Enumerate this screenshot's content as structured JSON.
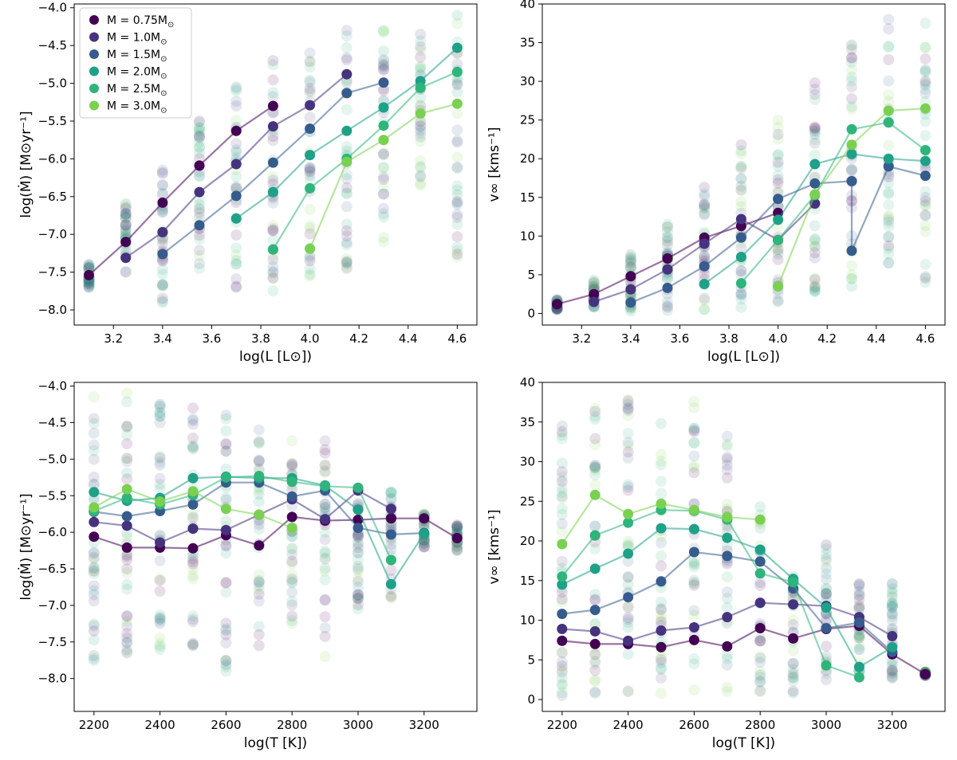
{
  "colors": {
    "M075": "#440154",
    "M10": "#46337e",
    "M15": "#365c8d",
    "M20": "#1fa187",
    "M25": "#2fb47c",
    "M30": "#7ad151"
  },
  "legend": [
    {
      "key": "M075",
      "label_pre": "M = 0.75M",
      "label_sub": "⊙"
    },
    {
      "key": "M10",
      "label_pre": "M = 1.0M",
      "label_sub": "⊙"
    },
    {
      "key": "M15",
      "label_pre": "M = 1.5M",
      "label_sub": "⊙"
    },
    {
      "key": "M20",
      "label_pre": "M = 2.0M",
      "label_sub": "⊙"
    },
    {
      "key": "M25",
      "label_pre": "M = 2.5M",
      "label_sub": "⊙"
    },
    {
      "key": "M30",
      "label_pre": "M = 3.0M",
      "label_sub": "⊙"
    }
  ],
  "chart_data": [
    {
      "type": "line",
      "id": "mdot-vs-L",
      "xlabel": "log(L [L⊙])",
      "ylabel": "log(Ṁ) [M⊙yr⁻¹]",
      "xlim": [
        3.04,
        4.68
      ],
      "ylim": [
        -8.2,
        -3.95
      ],
      "xticks": [
        3.2,
        3.4,
        3.6,
        3.8,
        4.0,
        4.2,
        4.4,
        4.6
      ],
      "xtick_labels": [
        "3.2",
        "3.4",
        "3.6",
        "3.8",
        "4.0",
        "4.2",
        "4.4",
        "4.6"
      ],
      "yticks": [
        -8.0,
        -7.5,
        -7.0,
        -6.5,
        -6.0,
        -5.5,
        -5.0,
        -4.5,
        -4.0
      ],
      "ytick_labels": [
        "−8.0",
        "−7.5",
        "−7.0",
        "−6.5",
        "−6.0",
        "−5.5",
        "−5.0",
        "−4.5",
        "−4.0"
      ],
      "scatter_band": {
        "step_keys": [
          3.1,
          3.25,
          3.4,
          3.55,
          3.7,
          3.85,
          4.0,
          4.15,
          4.3,
          4.45,
          4.6
        ]
      },
      "series": [
        {
          "name": "M075",
          "x": [
            3.1,
            3.25,
            3.4,
            3.55,
            3.7,
            3.85
          ],
          "y": [
            -7.54,
            -7.1,
            -6.58,
            -6.09,
            -5.63,
            -5.3
          ]
        },
        {
          "name": "M10",
          "x": [
            3.25,
            3.4,
            3.55,
            3.7,
            3.85,
            4.0,
            4.15
          ],
          "y": [
            -7.31,
            -6.97,
            -6.44,
            -6.07,
            -5.57,
            -5.29,
            -4.88
          ]
        },
        {
          "name": "M15",
          "x": [
            3.4,
            3.55,
            3.7,
            3.85,
            4.0,
            4.15,
            4.3
          ],
          "y": [
            -7.26,
            -6.88,
            -6.49,
            -6.05,
            -5.6,
            -5.13,
            -4.99
          ]
        },
        {
          "name": "M20",
          "x": [
            3.7,
            3.85,
            4.0,
            4.15,
            4.3,
            4.45,
            4.6
          ],
          "y": [
            -6.79,
            -6.44,
            -5.95,
            -5.63,
            -5.32,
            -4.97,
            -4.53
          ]
        },
        {
          "name": "M25",
          "x": [
            3.85,
            4.0,
            4.15,
            4.3,
            4.45,
            4.6
          ],
          "y": [
            -7.2,
            -6.39,
            -6.0,
            -5.56,
            -5.06,
            -4.85
          ]
        },
        {
          "name": "M30",
          "x": [
            4.0,
            4.15,
            4.3,
            4.45,
            4.6
          ],
          "y": [
            -7.19,
            -6.04,
            -5.75,
            -5.4,
            -5.27
          ]
        }
      ],
      "scatter": [
        {
          "x": 3.1,
          "ymin": -7.7,
          "ymax": -7.4
        },
        {
          "x": 3.25,
          "ymin": -7.5,
          "ymax": -6.6
        },
        {
          "x": 3.4,
          "ymin": -7.9,
          "ymax": -6.15
        },
        {
          "x": 3.55,
          "ymin": -7.45,
          "ymax": -5.5
        },
        {
          "x": 3.7,
          "ymin": -7.7,
          "ymax": -5.05
        },
        {
          "x": 3.85,
          "ymin": -7.75,
          "ymax": -4.7
        },
        {
          "x": 4.0,
          "ymin": -7.55,
          "ymax": -4.6
        },
        {
          "x": 4.15,
          "ymin": -7.45,
          "ymax": -4.3
        },
        {
          "x": 4.3,
          "ymin": -7.1,
          "ymax": -4.3
        },
        {
          "x": 4.45,
          "ymin": -6.35,
          "ymax": -4.35
        },
        {
          "x": 4.6,
          "ymin": -7.3,
          "ymax": -4.1
        }
      ]
    },
    {
      "type": "line",
      "id": "vinf-vs-L",
      "xlabel": "log(L [L⊙])",
      "ylabel": "v∞ [kms⁻¹]",
      "xlim": [
        3.04,
        4.68
      ],
      "ylim": [
        -1.5,
        40
      ],
      "xticks": [
        3.2,
        3.4,
        3.6,
        3.8,
        4.0,
        4.2,
        4.4,
        4.6
      ],
      "xtick_labels": [
        "3.2",
        "3.4",
        "3.6",
        "3.8",
        "4.0",
        "4.2",
        "4.4",
        "4.6"
      ],
      "yticks": [
        0,
        5,
        10,
        15,
        20,
        25,
        30,
        35,
        40
      ],
      "ytick_labels": [
        "0",
        "5",
        "10",
        "15",
        "20",
        "25",
        "30",
        "35",
        "40"
      ],
      "series": [
        {
          "name": "M075",
          "x": [
            3.1,
            3.25,
            3.4,
            3.55,
            3.7,
            3.85,
            4.0
          ],
          "y": [
            1.2,
            2.5,
            4.8,
            7.1,
            9.8,
            11.3,
            13.0
          ]
        },
        {
          "name": "M10",
          "x": [
            3.25,
            3.4,
            3.55,
            3.7,
            3.85,
            4.0,
            4.15
          ],
          "y": [
            1.5,
            3.1,
            5.7,
            9.0,
            12.2,
            9.5,
            14.2
          ]
        },
        {
          "name": "M15",
          "x": [
            3.4,
            3.55,
            3.7,
            3.85,
            4.0,
            4.15,
            4.3,
            4.3,
            4.45,
            4.6
          ],
          "y": [
            1.4,
            3.3,
            6.1,
            9.8,
            14.8,
            16.8,
            17.1,
            8.1,
            19.0,
            17.8
          ]
        },
        {
          "name": "M20",
          "x": [
            3.7,
            3.85,
            4.0,
            4.15,
            4.3,
            4.45,
            4.6
          ],
          "y": [
            3.8,
            7.3,
            12.1,
            19.3,
            20.6,
            20.0,
            19.7
          ]
        },
        {
          "name": "M25",
          "x": [
            3.85,
            4.0,
            4.15,
            4.3,
            4.45,
            4.6
          ],
          "y": [
            3.9,
            9.5,
            15.3,
            23.8,
            24.7,
            21.1
          ]
        },
        {
          "name": "M30",
          "x": [
            4.0,
            4.15,
            4.3,
            4.45,
            4.6
          ],
          "y": [
            3.5,
            15.4,
            21.8,
            26.2,
            26.5
          ]
        }
      ],
      "scatter": [
        {
          "x": 3.1,
          "ymin": 0.5,
          "ymax": 1.8
        },
        {
          "x": 3.25,
          "ymin": 0.8,
          "ymax": 4.3
        },
        {
          "x": 3.4,
          "ymin": 0.3,
          "ymax": 7.6
        },
        {
          "x": 3.55,
          "ymin": 0.4,
          "ymax": 11.5
        },
        {
          "x": 3.7,
          "ymin": 0.5,
          "ymax": 16.3
        },
        {
          "x": 3.85,
          "ymin": 0.8,
          "ymax": 21.8
        },
        {
          "x": 4.0,
          "ymin": 1.5,
          "ymax": 25.0
        },
        {
          "x": 4.15,
          "ymin": 2.8,
          "ymax": 29.8
        },
        {
          "x": 4.3,
          "ymin": 3.5,
          "ymax": 34.7
        },
        {
          "x": 4.45,
          "ymin": 6.5,
          "ymax": 38.0
        },
        {
          "x": 4.6,
          "ymin": 4.0,
          "ymax": 37.5
        }
      ]
    },
    {
      "type": "line",
      "id": "mdot-vs-T",
      "xlabel": "log(T [K])",
      "ylabel": "log(Ṁ) [M⊙yr⁻¹]",
      "xlim": [
        2140,
        3360
      ],
      "ylim": [
        -8.45,
        -3.95
      ],
      "xticks": [
        2200,
        2400,
        2600,
        2800,
        3000,
        3200
      ],
      "xtick_labels": [
        "2200",
        "2400",
        "2600",
        "2800",
        "3000",
        "3200"
      ],
      "yticks": [
        -8.0,
        -7.5,
        -7.0,
        -6.5,
        -6.0,
        -5.5,
        -5.0,
        -4.5,
        -4.0
      ],
      "ytick_labels": [
        "−8.0",
        "−7.5",
        "−7.0",
        "−6.5",
        "−6.0",
        "−5.5",
        "−5.0",
        "−4.5",
        "−4.0"
      ],
      "series": [
        {
          "name": "M075",
          "x": [
            2200,
            2300,
            2400,
            2500,
            2600,
            2700,
            2800,
            2900,
            3000,
            3100,
            3200,
            3300
          ],
          "y": [
            -6.06,
            -6.21,
            -6.21,
            -6.22,
            -6.04,
            -6.18,
            -5.79,
            -5.84,
            -5.83,
            -5.81,
            -5.81,
            -6.08
          ]
        },
        {
          "name": "M10",
          "x": [
            2200,
            2300,
            2400,
            2500,
            2600,
            2700,
            2800,
            2900,
            3000,
            3100
          ],
          "y": [
            -5.86,
            -5.91,
            -6.14,
            -5.95,
            -5.97,
            -5.76,
            -5.55,
            -5.82,
            -5.43,
            -5.68
          ]
        },
        {
          "name": "M15",
          "x": [
            2200,
            2300,
            2400,
            2500,
            2600,
            2700,
            2800,
            2900,
            3000,
            3100,
            3200
          ],
          "y": [
            -5.72,
            -5.78,
            -5.71,
            -5.62,
            -5.32,
            -5.32,
            -5.51,
            -5.43,
            -5.94,
            -6.03,
            -6.01
          ]
        },
        {
          "name": "M20",
          "x": [
            2200,
            2300,
            2400,
            2500,
            2600,
            2700,
            2800,
            2900,
            3000,
            3100,
            3200
          ],
          "y": [
            -5.45,
            -5.57,
            -5.53,
            -5.26,
            -5.24,
            -5.26,
            -5.26,
            -5.36,
            -5.69,
            -6.71,
            -6.02
          ]
        },
        {
          "name": "M25",
          "x": [
            2200,
            2300,
            2400,
            2500,
            2600,
            2700,
            2800,
            2900,
            3000,
            3100
          ],
          "y": [
            -5.71,
            -5.53,
            -5.62,
            -5.49,
            -5.25,
            -5.23,
            -5.31,
            -5.37,
            -5.39,
            -6.38
          ]
        },
        {
          "name": "M30",
          "x": [
            2200,
            2300,
            2400,
            2500,
            2600,
            2700,
            2800
          ],
          "y": [
            -5.66,
            -5.41,
            -5.58,
            -5.44,
            -5.68,
            -5.76,
            -5.94
          ]
        }
      ],
      "scatter": [
        {
          "x": 2200,
          "ymin": -7.75,
          "ymax": -4.15
        },
        {
          "x": 2300,
          "ymin": -7.65,
          "ymax": -4.1
        },
        {
          "x": 2400,
          "ymin": -7.6,
          "ymax": -4.25
        },
        {
          "x": 2500,
          "ymin": -7.55,
          "ymax": -4.3
        },
        {
          "x": 2600,
          "ymin": -7.9,
          "ymax": -4.4
        },
        {
          "x": 2700,
          "ymin": -7.55,
          "ymax": -4.6
        },
        {
          "x": 2800,
          "ymin": -7.25,
          "ymax": -4.75
        },
        {
          "x": 2900,
          "ymin": -7.7,
          "ymax": -4.75
        },
        {
          "x": 3000,
          "ymin": -7.05,
          "ymax": -5.4
        },
        {
          "x": 3100,
          "ymin": -6.9,
          "ymax": -5.45
        },
        {
          "x": 3200,
          "ymin": -6.2,
          "ymax": -5.75
        },
        {
          "x": 3300,
          "ymin": -6.25,
          "ymax": -5.9
        }
      ]
    },
    {
      "type": "line",
      "id": "vinf-vs-T",
      "xlabel": "log(T [K])",
      "ylabel": "v∞ [kms⁻¹]",
      "xlim": [
        2140,
        3360
      ],
      "ylim": [
        -1.5,
        40
      ],
      "xticks": [
        2200,
        2400,
        2600,
        2800,
        3000,
        3200
      ],
      "xtick_labels": [
        "2200",
        "2400",
        "2600",
        "2800",
        "3000",
        "3200"
      ],
      "yticks": [
        0,
        5,
        10,
        15,
        20,
        25,
        30,
        35,
        40
      ],
      "ytick_labels": [
        "0",
        "5",
        "10",
        "15",
        "20",
        "25",
        "30",
        "35",
        "40"
      ],
      "series": [
        {
          "name": "M075",
          "x": [
            2200,
            2300,
            2400,
            2500,
            2600,
            2700,
            2800,
            2900,
            3000,
            3100,
            3200,
            3300
          ],
          "y": [
            7.4,
            7.0,
            7.0,
            6.6,
            7.5,
            6.7,
            9.0,
            7.7,
            8.9,
            9.3,
            5.7,
            3.2
          ]
        },
        {
          "name": "M10",
          "x": [
            2200,
            2300,
            2400,
            2500,
            2600,
            2700,
            2800,
            2900,
            3000,
            3100,
            3200
          ],
          "y": [
            8.9,
            8.6,
            7.4,
            8.7,
            9.1,
            10.4,
            12.2,
            12.0,
            11.8,
            10.4,
            8.0
          ]
        },
        {
          "name": "M15",
          "x": [
            2200,
            2300,
            2400,
            2500,
            2600,
            2700,
            2800,
            2900,
            3000,
            3100,
            3200
          ],
          "y": [
            10.8,
            11.3,
            12.9,
            14.9,
            18.6,
            18.1,
            17.4,
            14.0,
            9.0,
            9.7,
            6.0
          ]
        },
        {
          "name": "M20",
          "x": [
            2200,
            2300,
            2400,
            2500,
            2600,
            2700,
            2800,
            2900,
            3000,
            3100,
            3200
          ],
          "y": [
            14.5,
            16.5,
            18.4,
            21.6,
            21.5,
            20.4,
            18.9,
            15.2,
            11.6,
            4.1,
            6.6
          ]
        },
        {
          "name": "M25",
          "x": [
            2200,
            2300,
            2400,
            2500,
            2600,
            2700,
            2800,
            2900,
            3000,
            3100
          ],
          "y": [
            15.5,
            20.7,
            22.3,
            23.9,
            23.8,
            22.7,
            15.9,
            14.8,
            4.3,
            2.8
          ]
        },
        {
          "name": "M30",
          "x": [
            2200,
            2300,
            2400,
            2500,
            2600,
            2700,
            2800
          ],
          "y": [
            19.6,
            25.8,
            23.4,
            24.7,
            23.9,
            23.0,
            22.7
          ]
        }
      ],
      "scatter": [
        {
          "x": 2200,
          "ymin": 0.5,
          "ymax": 34.5
        },
        {
          "x": 2300,
          "ymin": 0.8,
          "ymax": 36.7
        },
        {
          "x": 2400,
          "ymin": 1.0,
          "ymax": 37.8
        },
        {
          "x": 2500,
          "ymin": 0.8,
          "ymax": 34.8
        },
        {
          "x": 2600,
          "ymin": 1.2,
          "ymax": 37.6
        },
        {
          "x": 2700,
          "ymin": 1.0,
          "ymax": 33.2
        },
        {
          "x": 2800,
          "ymin": 1.0,
          "ymax": 24.3
        },
        {
          "x": 2900,
          "ymin": 0.8,
          "ymax": 15.5
        },
        {
          "x": 3000,
          "ymin": 2.5,
          "ymax": 19.5
        },
        {
          "x": 3100,
          "ymin": 3.5,
          "ymax": 14.6
        },
        {
          "x": 3200,
          "ymin": 2.7,
          "ymax": 14.6
        },
        {
          "x": 3300,
          "ymin": 3.0,
          "ymax": 3.5
        }
      ]
    }
  ]
}
